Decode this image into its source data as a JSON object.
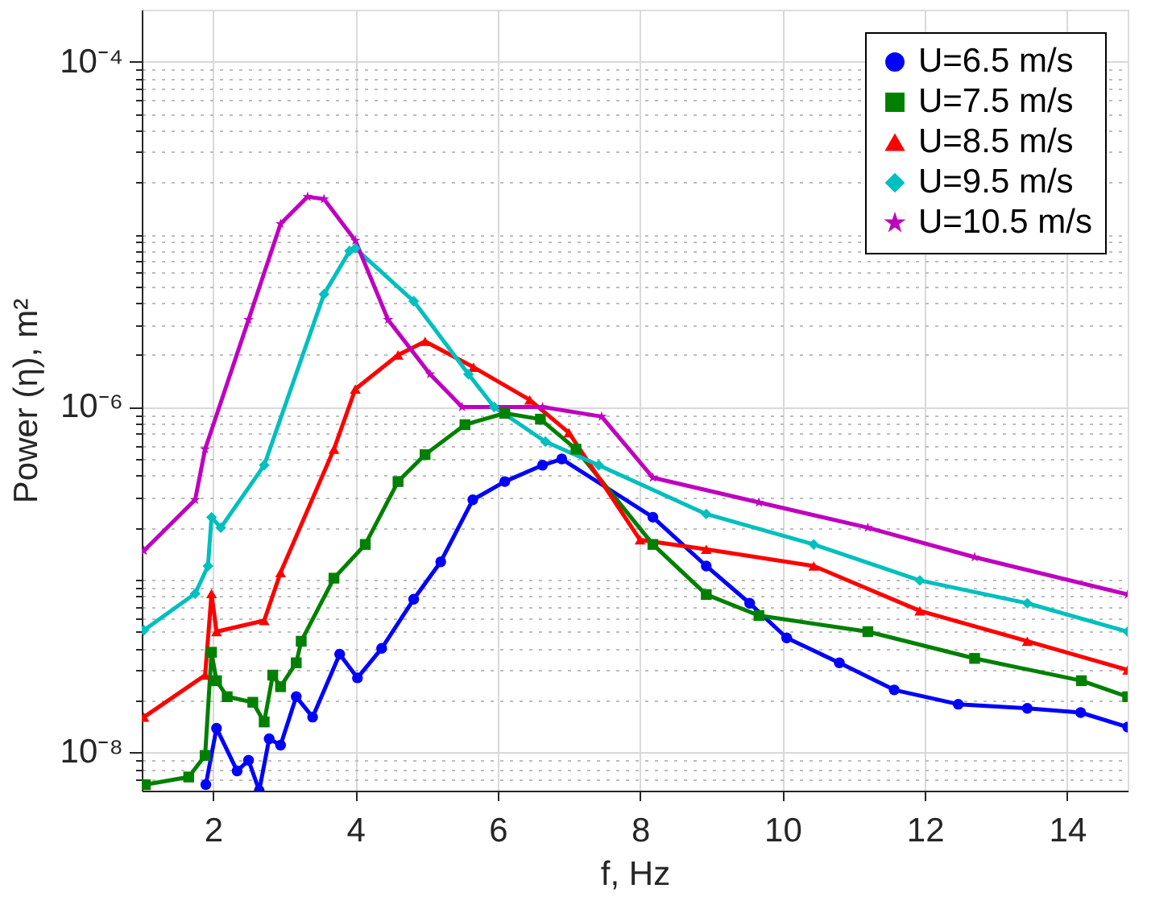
{
  "chart_data": {
    "type": "line",
    "xlabel": "f, Hz",
    "ylabel": "Power (η), m²",
    "log": "y",
    "grid": true,
    "legend": "top right",
    "line_style": "solid",
    "xlim": [
      1,
      14.85
    ],
    "xticks": [
      2,
      4,
      6,
      8,
      10,
      12,
      14
    ],
    "ylim": [
      6e-09,
      0.0002
    ],
    "yticks": [
      {
        "value": 7e-09,
        "label": null
      },
      {
        "value": 8e-09,
        "label": null
      },
      {
        "value": 9e-09,
        "label": null
      },
      {
        "value": 1e-08,
        "label": "10⁻⁸"
      },
      {
        "value": 2e-08,
        "label": null
      },
      {
        "value": 3e-08,
        "label": null
      },
      {
        "value": 4e-08,
        "label": null
      },
      {
        "value": 5e-08,
        "label": null
      },
      {
        "value": 6e-08,
        "label": null
      },
      {
        "value": 7e-08,
        "label": null
      },
      {
        "value": 8e-08,
        "label": null
      },
      {
        "value": 9e-08,
        "label": null
      },
      {
        "value": 1e-07,
        "label": null
      },
      {
        "value": 2e-07,
        "label": null
      },
      {
        "value": 3e-07,
        "label": null
      },
      {
        "value": 4e-07,
        "label": null
      },
      {
        "value": 5e-07,
        "label": null
      },
      {
        "value": 6e-07,
        "label": null
      },
      {
        "value": 7e-07,
        "label": null
      },
      {
        "value": 8e-07,
        "label": null
      },
      {
        "value": 9e-07,
        "label": null
      },
      {
        "value": 1e-06,
        "label": "10⁻⁶"
      },
      {
        "value": 2e-06,
        "label": null
      },
      {
        "value": 3e-06,
        "label": null
      },
      {
        "value": 4e-06,
        "label": null
      },
      {
        "value": 5e-06,
        "label": null
      },
      {
        "value": 6e-06,
        "label": null
      },
      {
        "value": 7e-06,
        "label": null
      },
      {
        "value": 8e-06,
        "label": null
      },
      {
        "value": 9e-06,
        "label": null
      },
      {
        "value": 1e-05,
        "label": null
      },
      {
        "value": 2e-05,
        "label": null
      },
      {
        "value": 3e-05,
        "label": null
      },
      {
        "value": 4e-05,
        "label": null
      },
      {
        "value": 5e-05,
        "label": null
      },
      {
        "value": 6e-05,
        "label": null
      },
      {
        "value": 7e-05,
        "label": null
      },
      {
        "value": 8e-05,
        "label": null
      },
      {
        "value": 9e-05,
        "label": null
      },
      {
        "value": 0.0001,
        "label": "10⁻⁴"
      }
    ],
    "series": [
      {
        "name": "U=6.5 m/s",
        "color": "#0000ff",
        "marker": "circle",
        "x": [
          1.9,
          2.05,
          2.34,
          2.5,
          2.65,
          2.79,
          2.95,
          3.17,
          3.4,
          3.78,
          4.03,
          4.37,
          4.82,
          5.2,
          5.65,
          6.1,
          6.63,
          6.9,
          8.18,
          8.93,
          9.54,
          10.06,
          10.8,
          11.57,
          12.47,
          13.44,
          14.19,
          14.85
        ],
        "values": [
          6.5e-09,
          1.38e-08,
          7.8e-09,
          9e-09,
          6e-09,
          1.2e-08,
          1.1e-08,
          2.1e-08,
          1.6e-08,
          3.7e-08,
          2.7e-08,
          4e-08,
          7.7e-08,
          1.27e-07,
          2.9e-07,
          3.7e-07,
          4.6e-07,
          5e-07,
          2.3e-07,
          1.2e-07,
          7.3e-08,
          4.6e-08,
          3.3e-08,
          2.3e-08,
          1.9e-08,
          1.8e-08,
          1.7e-08,
          1.4e-08
        ]
      },
      {
        "name": "U=7.5 m/s",
        "color": "#008000",
        "marker": "square",
        "x": [
          1.05,
          1.66,
          1.89,
          1.98,
          2.05,
          2.2,
          2.56,
          2.72,
          2.84,
          2.95,
          3.17,
          3.24,
          3.7,
          4.14,
          4.6,
          4.98,
          5.54,
          6.1,
          6.6,
          7.1,
          8.18,
          8.93,
          9.67,
          11.2,
          12.7,
          14.2,
          14.85
        ],
        "values": [
          6.5e-09,
          7.2e-09,
          9.6e-09,
          3.8e-08,
          2.6e-08,
          2.1e-08,
          1.95e-08,
          1.5e-08,
          2.8e-08,
          2.4e-08,
          3.3e-08,
          4.4e-08,
          1.02e-07,
          1.6e-07,
          3.7e-07,
          5.3e-07,
          7.9e-07,
          9.2e-07,
          8.5e-07,
          5.7e-07,
          1.6e-07,
          8.2e-08,
          6.2e-08,
          5e-08,
          3.5e-08,
          2.6e-08,
          2.1e-08
        ]
      },
      {
        "name": "U=8.5 m/s",
        "color": "#ff0000",
        "marker": "triangle",
        "x": [
          1.03,
          1.89,
          1.98,
          2.05,
          2.72,
          2.95,
          3.7,
          4.0,
          4.6,
          4.98,
          5.66,
          6.45,
          7.0,
          8.0,
          8.93,
          10.44,
          11.93,
          13.44,
          14.85
        ],
        "values": [
          1.6e-08,
          2.8e-08,
          8.3e-08,
          5e-08,
          5.8e-08,
          1.1e-07,
          5.7e-07,
          1.27e-06,
          2e-06,
          2.4e-06,
          1.7e-06,
          1.1e-06,
          7.1e-07,
          1.7e-07,
          1.5e-07,
          1.2e-07,
          6.6e-08,
          4.4e-08,
          3e-08
        ]
      },
      {
        "name": "U=9.5 m/s",
        "color": "#00bfbf",
        "marker": "diamond",
        "x": [
          1.03,
          1.75,
          1.93,
          1.98,
          2.11,
          2.72,
          3.56,
          3.92,
          4.0,
          4.82,
          5.59,
          5.95,
          6.67,
          7.42,
          8.93,
          10.44,
          11.93,
          13.44,
          14.85
        ],
        "values": [
          5.1e-08,
          8.3e-08,
          1.2e-07,
          2.3e-07,
          2e-07,
          4.6e-07,
          4.5e-06,
          8e-06,
          8.3e-06,
          4.1e-06,
          1.55e-06,
          1e-06,
          6.3e-07,
          4.6e-07,
          2.4e-07,
          1.6e-07,
          9.9e-08,
          7.3e-08,
          5e-08
        ]
      },
      {
        "name": "U=10.5 m/s",
        "color": "#bf00bf",
        "marker": "star",
        "x": [
          1.03,
          1.75,
          1.89,
          2.5,
          2.95,
          3.33,
          3.56,
          4.0,
          4.46,
          5.05,
          5.5,
          6.63,
          7.46,
          8.18,
          9.67,
          11.2,
          12.7,
          14.85
        ],
        "values": [
          1.47e-07,
          2.9e-07,
          5.7e-07,
          3.2e-06,
          1.15e-05,
          1.65e-05,
          1.6e-05,
          9.2e-06,
          3.2e-06,
          1.55e-06,
          1e-06,
          1e-06,
          8.8e-07,
          3.9e-07,
          2.8e-07,
          2e-07,
          1.35e-07,
          8.2e-08
        ]
      }
    ]
  }
}
